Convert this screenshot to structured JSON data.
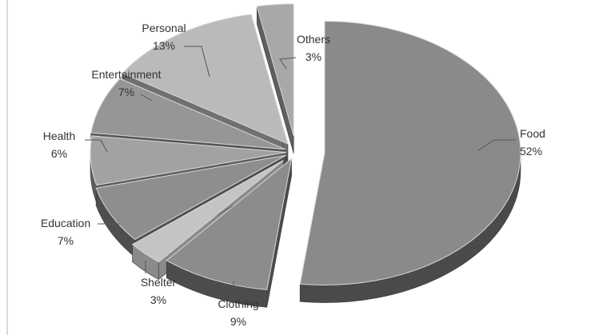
{
  "chart_data": {
    "type": "pie",
    "style": "3d-exploded",
    "title": "",
    "categories": [
      "Food",
      "Clothing",
      "Shelter",
      "Education",
      "Health",
      "Entertainment",
      "Personal",
      "Others"
    ],
    "values": [
      52,
      9,
      3,
      7,
      6,
      7,
      13,
      3
    ],
    "labels": [
      {
        "name": "Food",
        "value": "52%"
      },
      {
        "name": "Clothing",
        "value": "9%"
      },
      {
        "name": "Shelter",
        "value": "3%"
      },
      {
        "name": "Education",
        "value": "7%"
      },
      {
        "name": "Health",
        "value": "6%"
      },
      {
        "name": "Entertainment",
        "value": "7%"
      },
      {
        "name": "Personal",
        "value": "13%"
      },
      {
        "name": "Others",
        "value": "3%"
      }
    ],
    "colors": {
      "top": [
        "#8a8a8a",
        "#8c8c8c",
        "#c4c4c4",
        "#8e8e8e",
        "#a2a2a2",
        "#969696",
        "#bababa",
        "#a8a8a8"
      ],
      "side": [
        "#4a4a4a",
        "#4c4c4c",
        "#8a8a8a",
        "#4e4e4e",
        "#5e5e5e",
        "#555555",
        "#707070",
        "#5f5f5f"
      ]
    },
    "legend": "none"
  }
}
